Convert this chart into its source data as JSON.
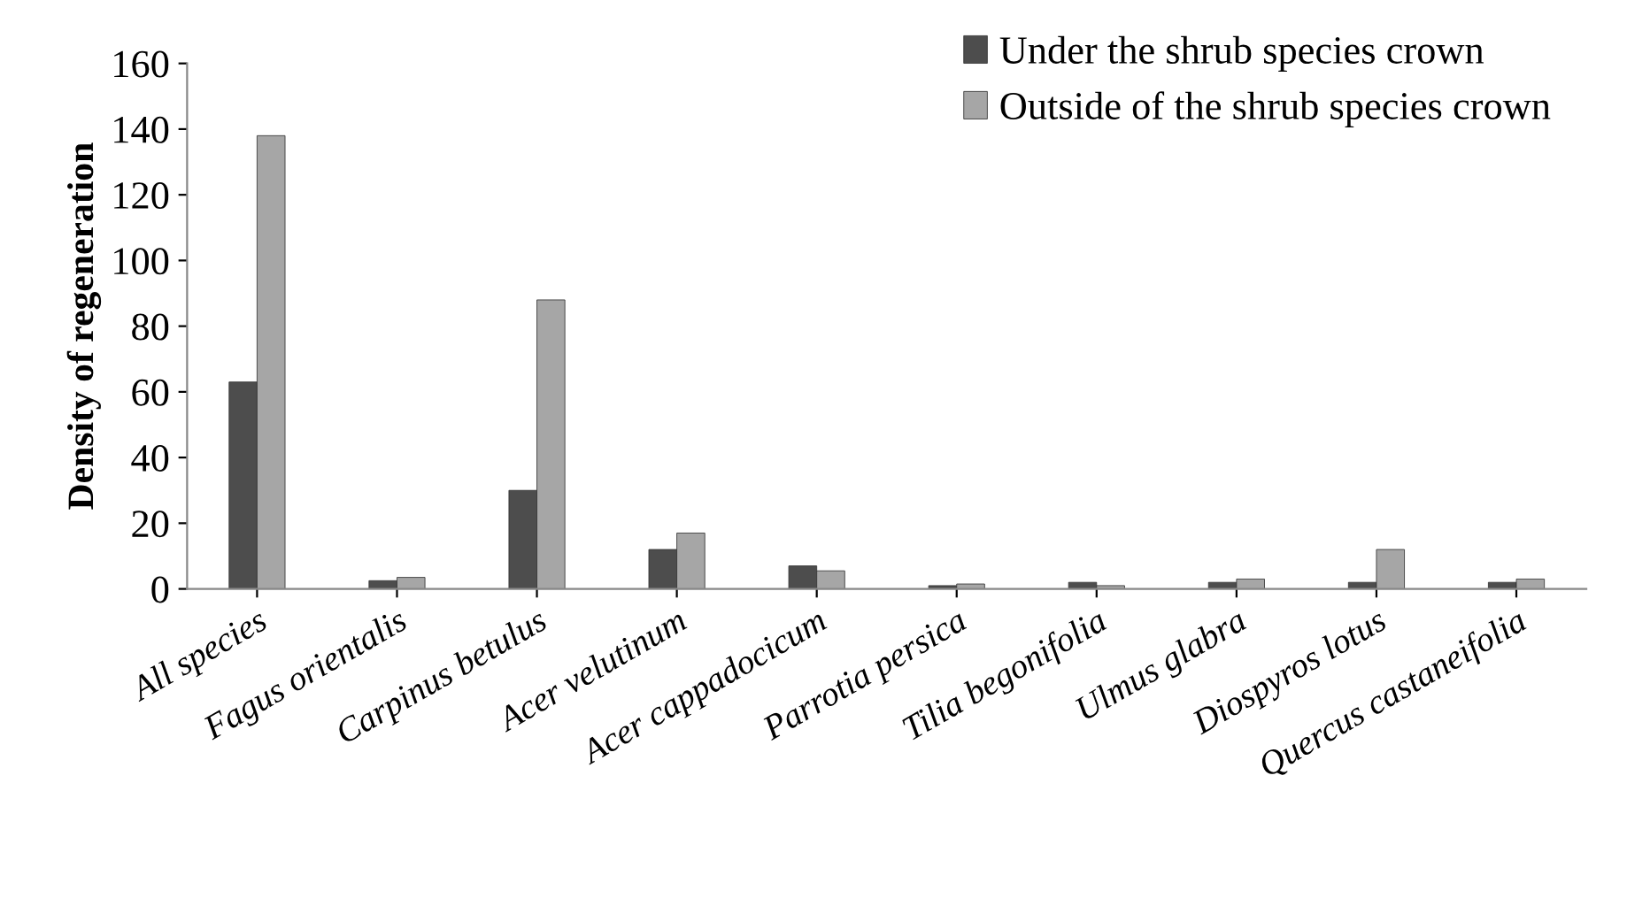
{
  "chart_data": {
    "type": "bar",
    "ylabel": "Density of regeneration",
    "categories": [
      "All species",
      "Fagus orientalis",
      "Carpinus betulus",
      "Acer velutinum",
      "Acer cappadocicum",
      "Parrotia persica",
      "Tilia begonifolia",
      "Ulmus glabra",
      "Diospyros lotus",
      "Quercus castaneifolia"
    ],
    "series": [
      {
        "name": "Under the shrub species crown",
        "color": "#4d4d4d",
        "values": [
          63,
          2.5,
          30,
          12,
          7,
          1,
          2,
          2,
          2,
          2
        ]
      },
      {
        "name": "Outside of the shrub species crown",
        "color": "#a6a6a6",
        "values": [
          138,
          3.5,
          88,
          17,
          5.5,
          1.5,
          1,
          3,
          12,
          3
        ]
      }
    ],
    "ylim": [
      0,
      160
    ],
    "yticks": [
      0,
      20,
      40,
      60,
      80,
      100,
      120,
      140,
      160
    ],
    "grid": false,
    "legend": "top right"
  }
}
